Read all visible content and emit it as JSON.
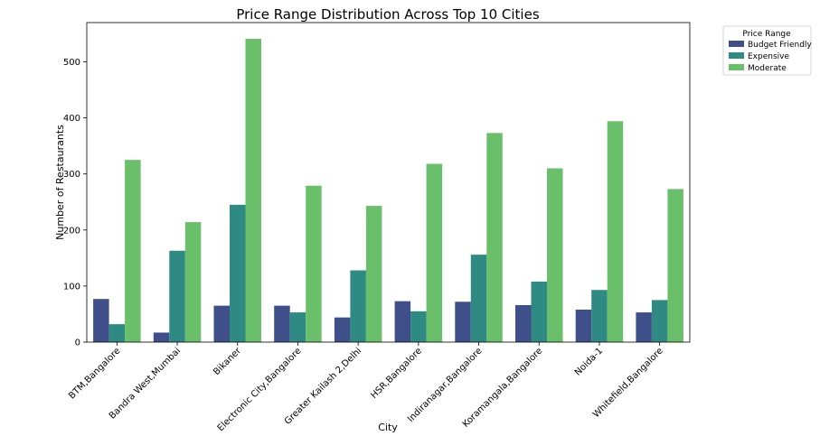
{
  "chart_data": {
    "type": "bar",
    "title": "Price Range Distribution Across Top 10 Cities",
    "xlabel": "City",
    "ylabel": "Number of Restaurants",
    "ylim": [
      0,
      570
    ],
    "yticks": [
      0,
      100,
      200,
      300,
      400,
      500
    ],
    "categories": [
      "BTM,Bangalore",
      "Bandra West,Mumbai",
      "Bikaner",
      "Electronic City,Bangalore",
      "Greater Kailash 2,Delhi",
      "HSR,Bangalore",
      "Indiranagar,Bangalore",
      "Koramangala,Bangalore",
      "Noida-1",
      "Whitefield,Bangalore"
    ],
    "series": [
      {
        "name": "Budget Friendly",
        "color": "#3f4f8a",
        "values": [
          77,
          17,
          65,
          65,
          44,
          73,
          72,
          66,
          58,
          53
        ]
      },
      {
        "name": "Expensive",
        "color": "#2e8a82",
        "values": [
          32,
          163,
          245,
          53,
          128,
          55,
          156,
          108,
          93,
          75
        ]
      },
      {
        "name": "Moderate",
        "color": "#6abf6a",
        "values": [
          325,
          214,
          541,
          279,
          243,
          318,
          373,
          310,
          394,
          273
        ]
      }
    ],
    "legend": {
      "title": "Price Range",
      "placement": "outside-top-right"
    },
    "grid": false
  }
}
